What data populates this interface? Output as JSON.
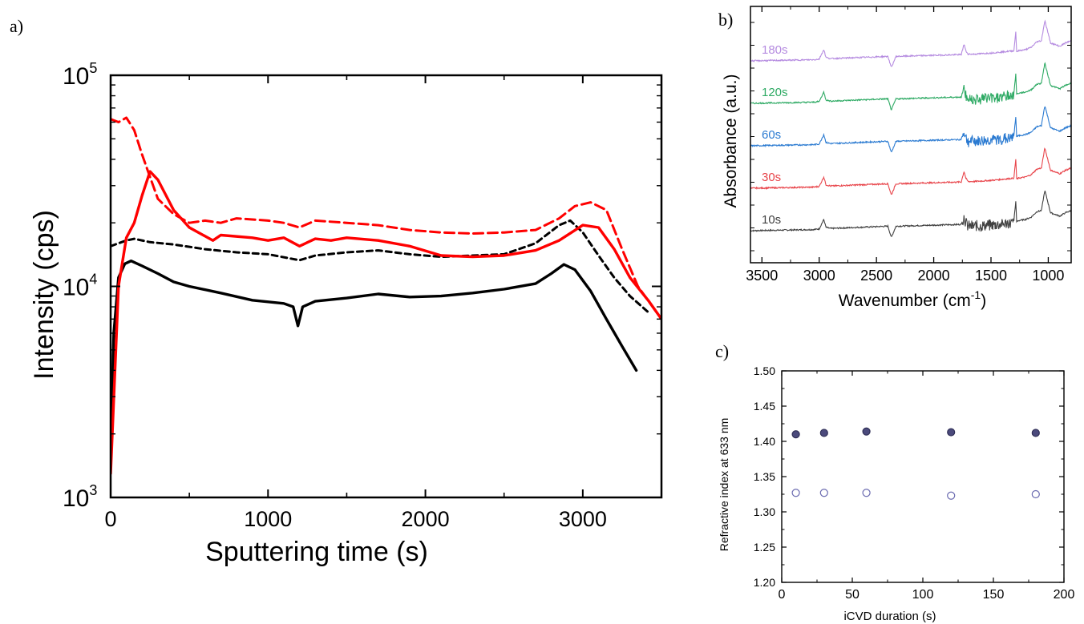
{
  "chart_data": [
    {
      "panel_label": "a)",
      "type": "line",
      "xlabel": "Sputtering time (s)",
      "ylabel": "Intensity (cps)",
      "xlim": [
        0,
        3500
      ],
      "ylim": [
        1000,
        100000
      ],
      "yscale": "log",
      "x_ticks": [
        0,
        1000,
        2000,
        3000
      ],
      "x_tick_labels": [
        "0",
        "1000",
        "2000",
        "3000"
      ],
      "y_ticks": [
        1000,
        10000,
        100000
      ],
      "y_tick_labels": [
        {
          "base": "10",
          "exp": "3"
        },
        {
          "base": "10",
          "exp": "4"
        },
        {
          "base": "10",
          "exp": "5"
        }
      ],
      "series": [
        {
          "color": "#000000",
          "style": "solid",
          "x": [
            0,
            20,
            50,
            90,
            130,
            200,
            300,
            400,
            500,
            700,
            900,
            1100,
            1160,
            1190,
            1220,
            1300,
            1500,
            1700,
            1900,
            2100,
            2300,
            2500,
            2700,
            2800,
            2880,
            2950,
            3050,
            3150,
            3250,
            3340
          ],
          "y": [
            1500,
            6000,
            11000,
            12800,
            13200,
            12500,
            11500,
            10500,
            10000,
            9300,
            8600,
            8300,
            8000,
            6500,
            8000,
            8500,
            8800,
            9200,
            8900,
            9000,
            9300,
            9700,
            10300,
            11500,
            12700,
            12000,
            9500,
            7000,
            5200,
            4000
          ]
        },
        {
          "color": "#000000",
          "style": "dashed",
          "x": [
            0,
            50,
            100,
            150,
            250,
            400,
            600,
            800,
            1000,
            1200,
            1300,
            1500,
            1700,
            1900,
            2100,
            2300,
            2500,
            2700,
            2850,
            2920,
            3000,
            3100,
            3200,
            3300,
            3420
          ],
          "y": [
            15500,
            16000,
            16500,
            16800,
            16200,
            15800,
            15000,
            14500,
            14200,
            13300,
            14000,
            14500,
            14800,
            14200,
            13800,
            14000,
            14200,
            16000,
            19500,
            20500,
            18000,
            14000,
            11000,
            9000,
            7500
          ]
        },
        {
          "color": "#ff0000",
          "style": "solid",
          "x": [
            0,
            50,
            100,
            150,
            200,
            250,
            300,
            400,
            500,
            650,
            700,
            900,
            1000,
            1100,
            1200,
            1300,
            1400,
            1500,
            1700,
            1900,
            2100,
            2300,
            2500,
            2700,
            2850,
            3000,
            3100,
            3200,
            3300,
            3420,
            3500
          ],
          "y": [
            1300,
            10000,
            17000,
            20000,
            27000,
            35000,
            32000,
            23000,
            19000,
            16500,
            17500,
            17000,
            16500,
            17000,
            15500,
            16800,
            16500,
            17000,
            16500,
            15500,
            14000,
            13800,
            14000,
            14800,
            16500,
            19500,
            19000,
            15000,
            11000,
            8500,
            7000
          ]
        },
        {
          "color": "#ff0000",
          "style": "dashed",
          "x": [
            0,
            50,
            100,
            150,
            200,
            250,
            300,
            400,
            500,
            600,
            700,
            800,
            1000,
            1100,
            1200,
            1300,
            1500,
            1700,
            1900,
            2100,
            2300,
            2500,
            2700,
            2850,
            2950,
            3050,
            3150,
            3250,
            3350,
            3500
          ],
          "y": [
            62000,
            60000,
            63000,
            55000,
            42000,
            33000,
            26000,
            22000,
            20000,
            20500,
            20000,
            21000,
            20500,
            20000,
            19000,
            20500,
            20000,
            19500,
            18500,
            18000,
            17800,
            18000,
            18500,
            21000,
            24000,
            25000,
            23000,
            15000,
            10000,
            7000
          ]
        }
      ]
    },
    {
      "panel_label": "b)",
      "type": "line",
      "xlabel_base": "Wavenumber (cm",
      "xlabel_sup": "-1",
      "xlabel_end": ")",
      "ylabel": "Absorbance (a.u.)",
      "xlim": [
        3600,
        800
      ],
      "x_reversed": true,
      "x_ticks": [
        3500,
        3000,
        2500,
        2000,
        1500,
        1000
      ],
      "x_tick_labels": [
        "3500",
        "3000",
        "2500",
        "2000",
        "1500",
        "1000"
      ],
      "series": [
        {
          "name": "10s",
          "color": "#404040",
          "offset": 0
        },
        {
          "name": "30s",
          "color": "#e8444a",
          "offset": 1
        },
        {
          "name": "60s",
          "color": "#2a7ad1",
          "offset": 2
        },
        {
          "name": "120s",
          "color": "#2eaa64",
          "offset": 3
        },
        {
          "name": "180s",
          "color": "#b58be0",
          "offset": 4
        }
      ],
      "spectrum_profile": {
        "x": [
          3600,
          3050,
          3000,
          2960,
          2940,
          2900,
          2400,
          2370,
          2330,
          1760,
          1735,
          1720,
          1700,
          1650,
          1500,
          1300,
          1282,
          1278,
          1260,
          1200,
          1150,
          1100,
          1060,
          1030,
          1010,
          980,
          900,
          850,
          800
        ],
        "y": [
          0,
          0.05,
          0.08,
          0.5,
          0.15,
          0.1,
          0.2,
          -0.3,
          0.2,
          0.28,
          0.75,
          0.45,
          0.3,
          0.3,
          0.35,
          0.45,
          1.4,
          0.4,
          0.45,
          0.5,
          0.6,
          0.85,
          0.9,
          1.8,
          1.4,
          0.8,
          0.65,
          0.8,
          0.9
        ]
      }
    },
    {
      "panel_label": "c)",
      "type": "scatter",
      "xlabel": "iCVD duration (s)",
      "ylabel": "Refractive index at 633 nm",
      "xlim": [
        0,
        200
      ],
      "ylim": [
        1.2,
        1.5
      ],
      "x_ticks": [
        0,
        50,
        100,
        150,
        200
      ],
      "x_tick_labels": [
        "0",
        "50",
        "100",
        "150",
        "200"
      ],
      "y_ticks": [
        1.2,
        1.25,
        1.3,
        1.35,
        1.4,
        1.45,
        1.5
      ],
      "y_tick_labels": [
        "1.20",
        "1.25",
        "1.30",
        "1.35",
        "1.40",
        "1.45",
        "1.50"
      ],
      "series": [
        {
          "marker": "filled",
          "color": "#4b4a7c",
          "x": [
            10,
            30,
            60,
            120,
            180
          ],
          "y": [
            1.41,
            1.412,
            1.414,
            1.413,
            1.412
          ]
        },
        {
          "marker": "open",
          "color": "#6a6ab0",
          "x": [
            10,
            30,
            60,
            120,
            180
          ],
          "y": [
            1.327,
            1.327,
            1.327,
            1.323,
            1.325
          ]
        }
      ]
    }
  ]
}
